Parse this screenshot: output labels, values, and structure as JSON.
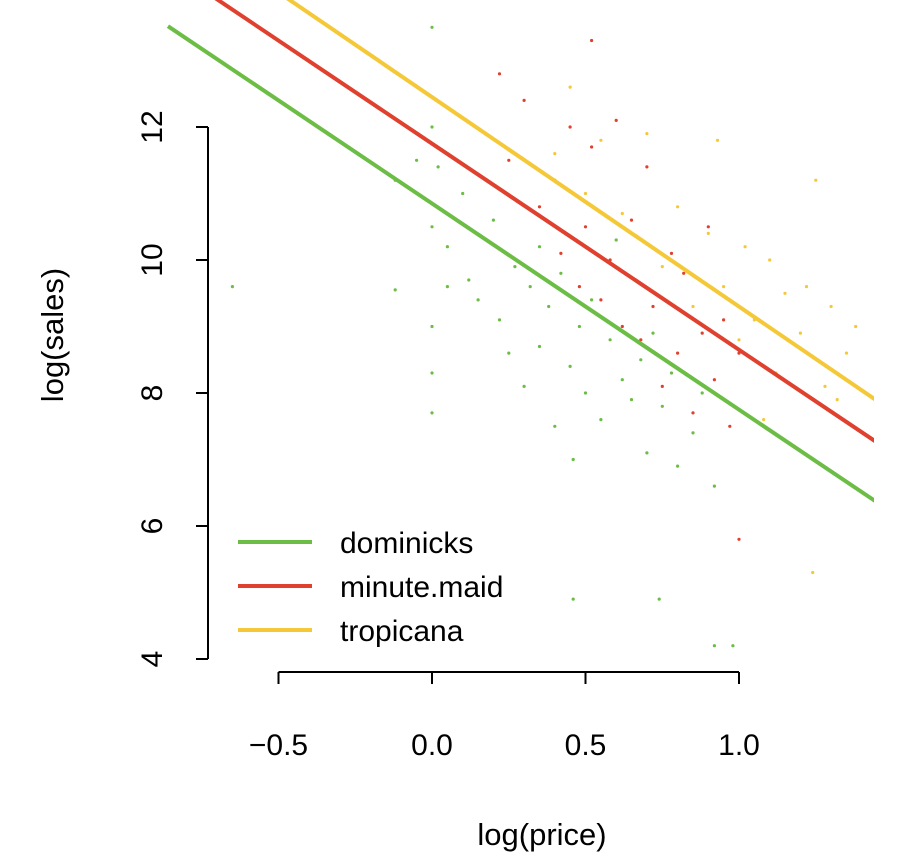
{
  "chart_data": {
    "type": "scatter",
    "title": "",
    "xlabel": "log(price)",
    "ylabel": "log(sales)",
    "xlim": [
      -0.66,
      1.45
    ],
    "ylim": [
      3.9,
      13.6
    ],
    "x_ticks": [
      -0.5,
      0.0,
      0.5,
      1.0
    ],
    "x_tick_labels": [
      "−0.5",
      "0.0",
      "0.5",
      "1.0"
    ],
    "y_ticks": [
      4,
      6,
      8,
      10,
      12
    ],
    "y_tick_labels": [
      "4",
      "6",
      "8",
      "10",
      "12"
    ],
    "grid": false,
    "legend": {
      "position": "bottom-left"
    },
    "series": [
      {
        "name": "dominicks",
        "color": "#6cbd45",
        "fit": {
          "intercept": 10.85,
          "slope": -3.1
        },
        "points": [
          [
            -0.65,
            9.6
          ],
          [
            -0.12,
            9.55
          ],
          [
            -0.12,
            11.2
          ],
          [
            -0.05,
            11.5
          ],
          [
            0.0,
            13.5
          ],
          [
            0.0,
            12.0
          ],
          [
            0.0,
            10.5
          ],
          [
            0.0,
            9.0
          ],
          [
            0.0,
            8.3
          ],
          [
            0.0,
            7.7
          ],
          [
            0.02,
            11.4
          ],
          [
            0.05,
            10.2
          ],
          [
            0.05,
            9.6
          ],
          [
            0.1,
            11.0
          ],
          [
            0.12,
            9.7
          ],
          [
            0.15,
            9.4
          ],
          [
            0.2,
            10.6
          ],
          [
            0.22,
            9.1
          ],
          [
            0.25,
            8.6
          ],
          [
            0.27,
            9.9
          ],
          [
            0.3,
            8.1
          ],
          [
            0.32,
            9.6
          ],
          [
            0.35,
            10.2
          ],
          [
            0.35,
            8.7
          ],
          [
            0.38,
            9.3
          ],
          [
            0.4,
            7.5
          ],
          [
            0.42,
            9.8
          ],
          [
            0.45,
            8.4
          ],
          [
            0.46,
            7.0
          ],
          [
            0.46,
            4.9
          ],
          [
            0.48,
            9.0
          ],
          [
            0.5,
            8.0
          ],
          [
            0.52,
            9.4
          ],
          [
            0.55,
            7.6
          ],
          [
            0.58,
            8.8
          ],
          [
            0.6,
            10.3
          ],
          [
            0.62,
            8.2
          ],
          [
            0.65,
            7.9
          ],
          [
            0.68,
            8.5
          ],
          [
            0.7,
            7.1
          ],
          [
            0.72,
            8.9
          ],
          [
            0.74,
            4.9
          ],
          [
            0.75,
            7.8
          ],
          [
            0.78,
            8.3
          ],
          [
            0.8,
            6.9
          ],
          [
            0.85,
            7.4
          ],
          [
            0.88,
            8.0
          ],
          [
            0.92,
            6.6
          ],
          [
            0.92,
            4.2
          ],
          [
            0.98,
            4.2
          ]
        ]
      },
      {
        "name": "minute.maid",
        "color": "#e0402e",
        "fit": {
          "intercept": 11.75,
          "slope": -3.1
        },
        "points": [
          [
            0.22,
            12.8
          ],
          [
            0.25,
            11.5
          ],
          [
            0.3,
            12.4
          ],
          [
            0.35,
            10.8
          ],
          [
            0.4,
            11.2
          ],
          [
            0.42,
            10.1
          ],
          [
            0.45,
            12.0
          ],
          [
            0.48,
            9.6
          ],
          [
            0.5,
            10.5
          ],
          [
            0.52,
            13.3
          ],
          [
            0.52,
            11.7
          ],
          [
            0.55,
            9.4
          ],
          [
            0.58,
            10.0
          ],
          [
            0.6,
            12.1
          ],
          [
            0.62,
            9.0
          ],
          [
            0.65,
            10.6
          ],
          [
            0.68,
            8.8
          ],
          [
            0.7,
            11.4
          ],
          [
            0.72,
            9.3
          ],
          [
            0.75,
            8.1
          ],
          [
            0.78,
            10.1
          ],
          [
            0.8,
            8.6
          ],
          [
            0.82,
            9.8
          ],
          [
            0.85,
            7.7
          ],
          [
            0.88,
            8.9
          ],
          [
            0.9,
            10.5
          ],
          [
            0.92,
            8.2
          ],
          [
            0.95,
            9.1
          ],
          [
            0.97,
            7.5
          ],
          [
            1.0,
            8.6
          ],
          [
            1.0,
            5.8
          ]
        ]
      },
      {
        "name": "tropicana",
        "color": "#f5c838",
        "fit": {
          "intercept": 12.45,
          "slope": -3.15
        },
        "points": [
          [
            0.4,
            11.6
          ],
          [
            0.45,
            12.6
          ],
          [
            0.5,
            11.0
          ],
          [
            0.55,
            11.8
          ],
          [
            0.62,
            10.7
          ],
          [
            0.7,
            11.9
          ],
          [
            0.75,
            9.9
          ],
          [
            0.8,
            10.8
          ],
          [
            0.85,
            9.3
          ],
          [
            0.9,
            10.4
          ],
          [
            0.93,
            11.8
          ],
          [
            0.95,
            9.6
          ],
          [
            1.0,
            8.8
          ],
          [
            1.02,
            10.2
          ],
          [
            1.05,
            9.1
          ],
          [
            1.08,
            7.6
          ],
          [
            1.1,
            10.0
          ],
          [
            1.12,
            8.3
          ],
          [
            1.15,
            9.5
          ],
          [
            1.18,
            7.2
          ],
          [
            1.2,
            8.9
          ],
          [
            1.22,
            9.6
          ],
          [
            1.24,
            5.3
          ],
          [
            1.25,
            11.2
          ],
          [
            1.28,
            8.1
          ],
          [
            1.3,
            9.3
          ],
          [
            1.32,
            7.9
          ],
          [
            1.35,
            8.6
          ],
          [
            1.38,
            9.0
          ]
        ]
      }
    ]
  }
}
